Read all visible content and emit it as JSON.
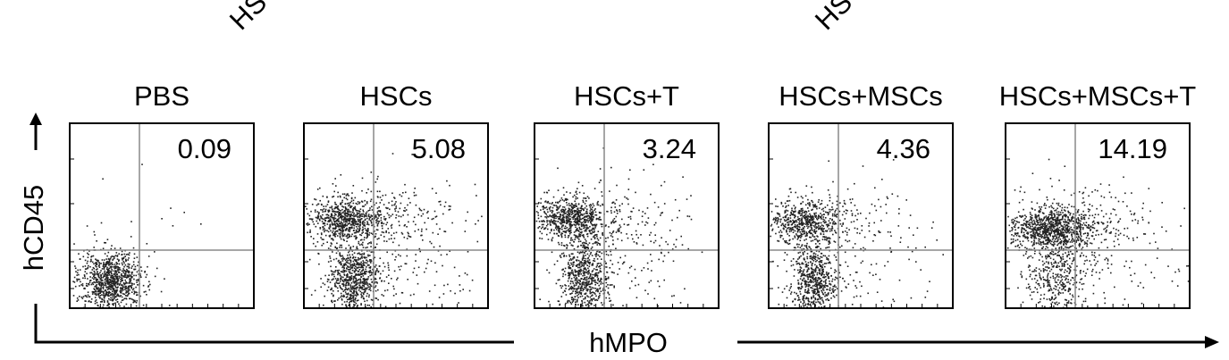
{
  "top_labels": [
    "HS",
    "HS"
  ],
  "panels": [
    {
      "title": "PBS",
      "value": 0.09
    },
    {
      "title": "HSCs",
      "value": 5.08
    },
    {
      "title": "HSCs+T",
      "value": 3.24
    },
    {
      "title": "HSCs+MSCs",
      "value": 4.36
    },
    {
      "title": "HSCs+MSCs+T",
      "value": 14.19
    }
  ],
  "y_axis_label": "hCD45",
  "x_axis_label": "hMPO"
}
